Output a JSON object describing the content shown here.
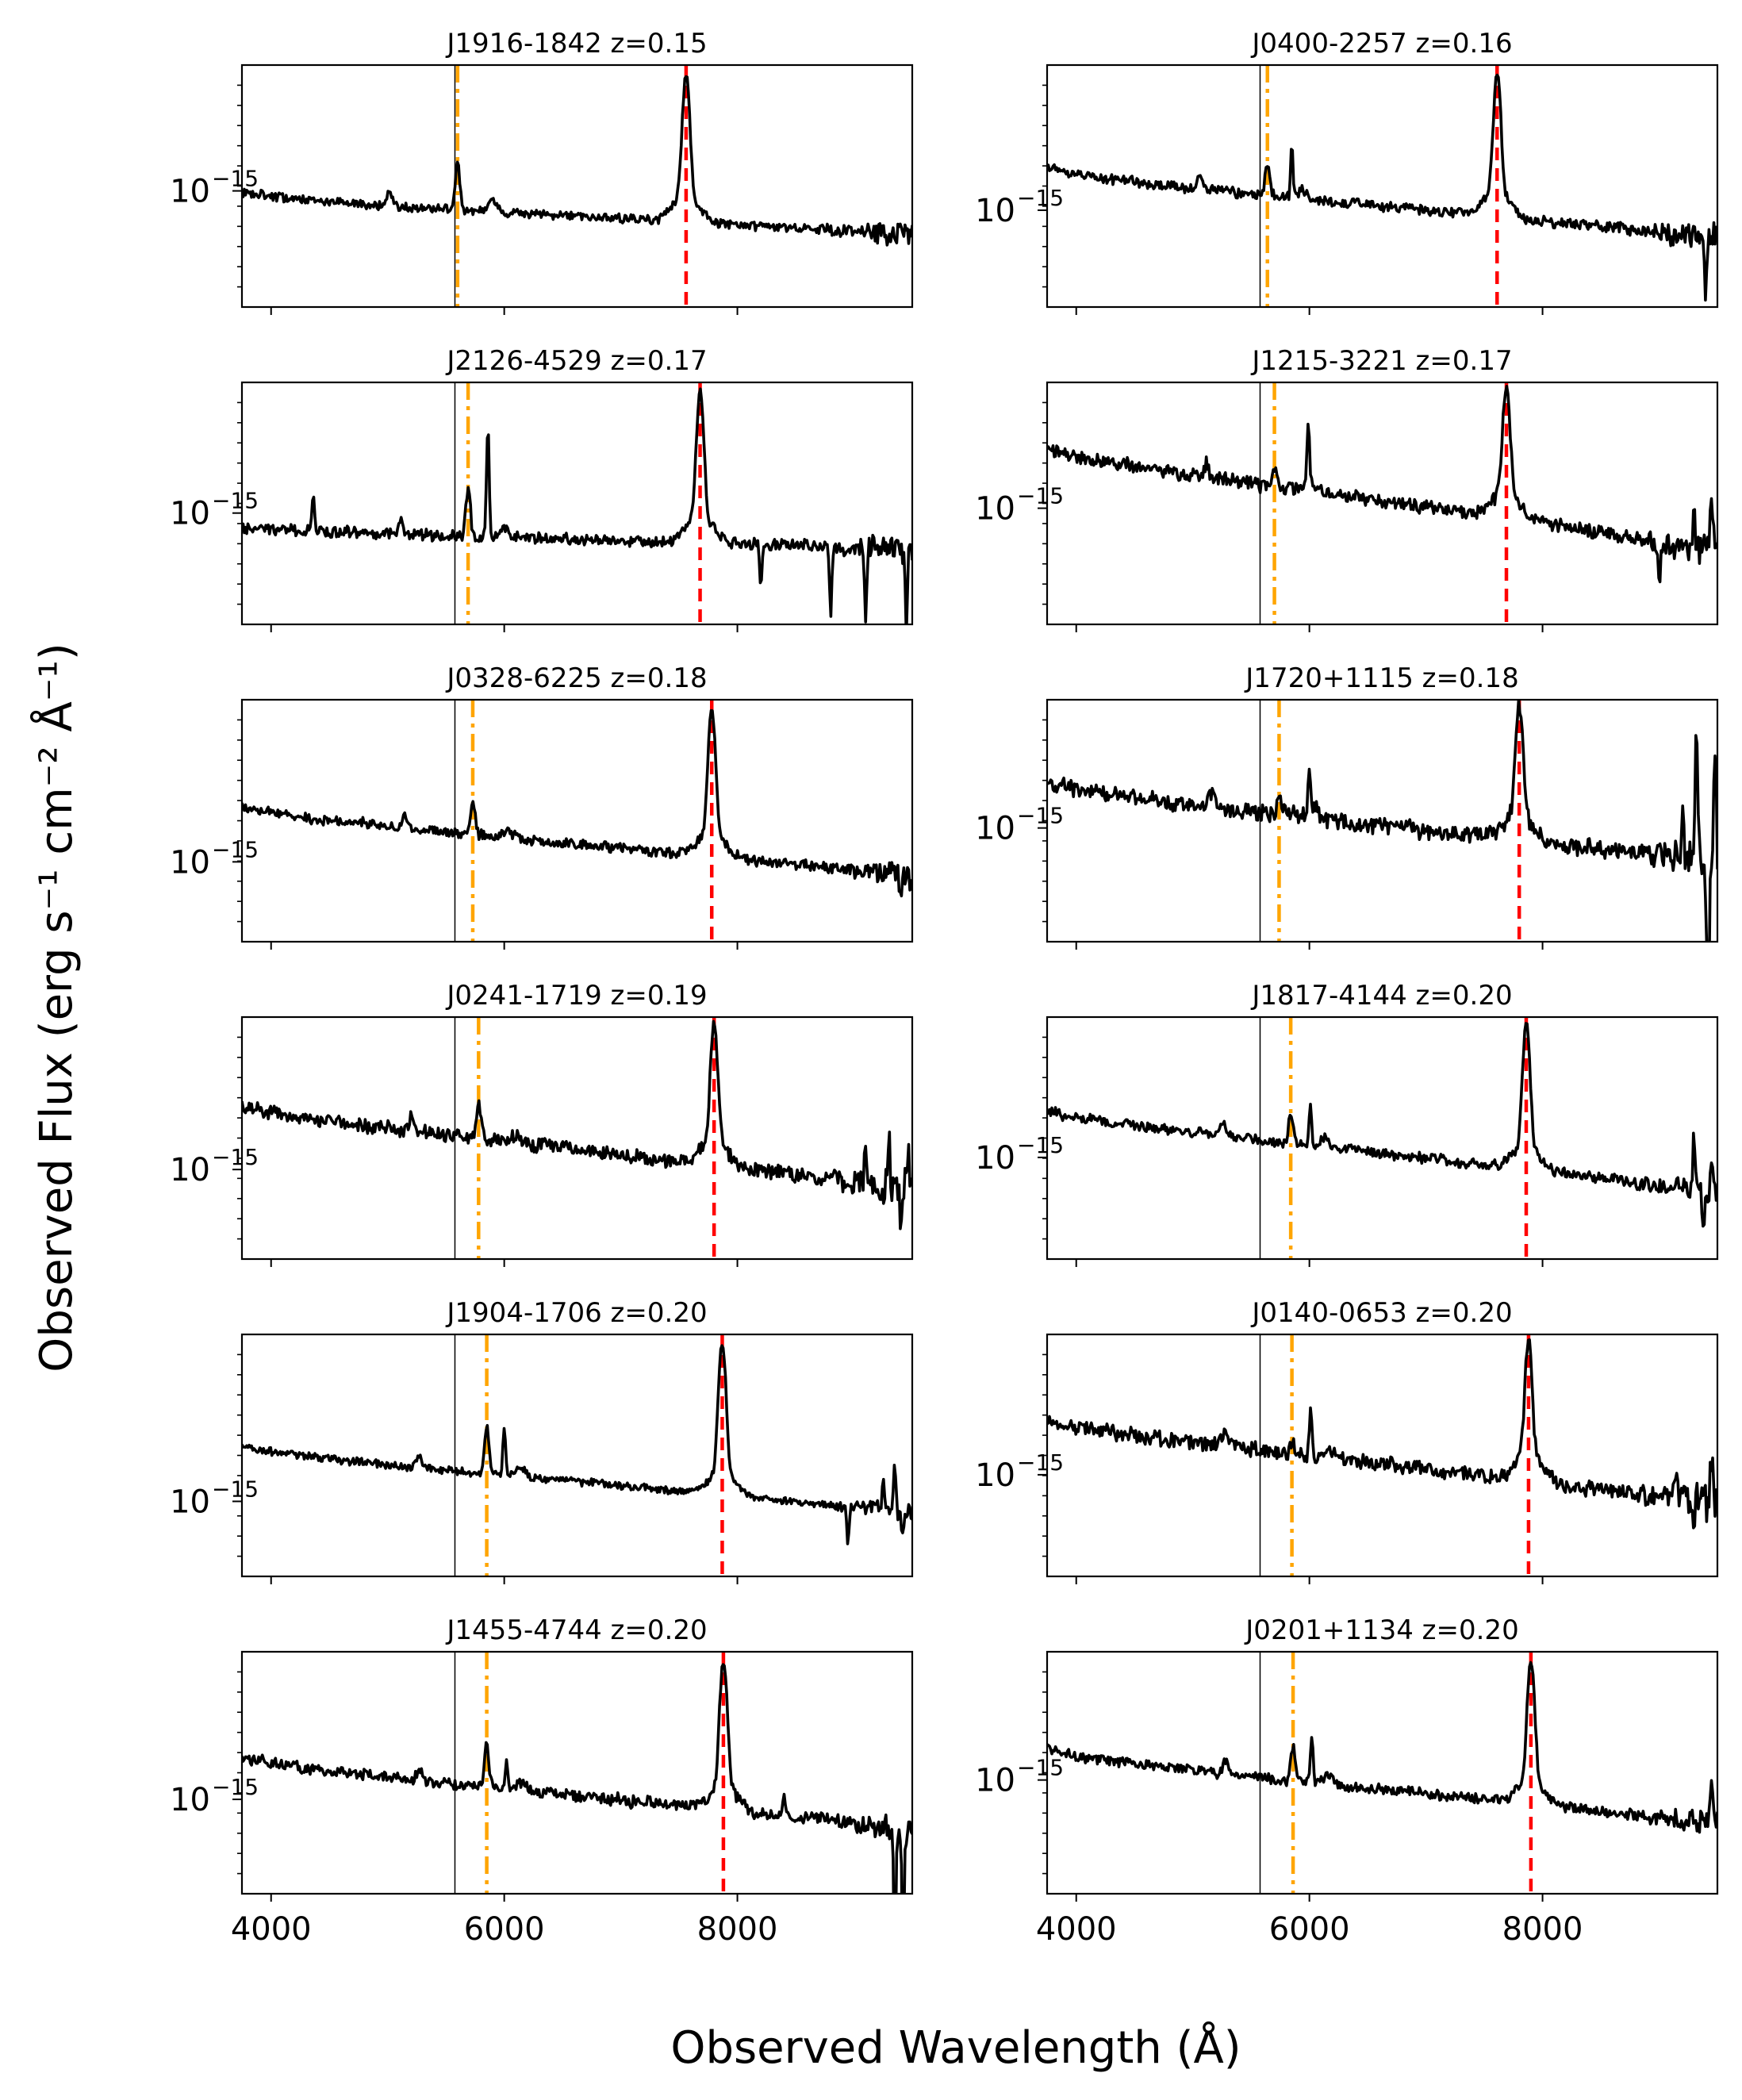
{
  "figure": {
    "xlabel": "Observed Wavelength (Å)",
    "ylabel": "Observed Flux (erg s⁻¹ cm⁻² Å⁻¹)",
    "ytick_base": "10",
    "ytick_exp": "−15",
    "xticks": [
      "4000",
      "6000",
      "8000"
    ]
  },
  "colors": {
    "spectrum": "#000000",
    "sky_line": "#000000",
    "hbeta_line": "#FFA500",
    "halpha_line": "#FF0000"
  },
  "chart_data": [
    {
      "type": "line",
      "title": "J1916-1842 z=0.15",
      "xlim": [
        3750,
        9500
      ],
      "sky_line": 5577,
      "hbeta": 5600,
      "halpha": 7560,
      "continuum": [
        1.05,
        0.75
      ],
      "ha_peak": 2.6,
      "hb_peak": 1.35,
      "y_tick_frac": 0.52,
      "noise": 0.04,
      "seed": 11,
      "spikes": []
    },
    {
      "type": "line",
      "title": "J0400-2257 z=0.16",
      "xlim": [
        3750,
        9500
      ],
      "sky_line": 5577,
      "hbeta": 5640,
      "halpha": 7610,
      "continuum": [
        1.3,
        0.72
      ],
      "ha_peak": 2.75,
      "hb_peak": 1.35,
      "y_tick_frac": 0.6,
      "noise": 0.05,
      "seed": 12,
      "spikes": [
        [
          5850,
          0.5
        ],
        [
          9400,
          -0.4
        ]
      ]
    },
    {
      "type": "line",
      "title": "J2126-4529 z=0.17",
      "xlim": [
        3750,
        9500
      ],
      "sky_line": 5577,
      "hbeta": 5690,
      "halpha": 7680,
      "continuum": [
        0.85,
        0.72
      ],
      "ha_peak": 2.3,
      "hb_peak": 1.15,
      "y_tick_frac": 0.54,
      "noise": 0.05,
      "seed": 13,
      "spikes": [
        [
          5860,
          1.4
        ],
        [
          4360,
          0.35
        ],
        [
          8200,
          -0.3
        ],
        [
          8800,
          -0.45
        ],
        [
          9100,
          -0.45
        ],
        [
          9450,
          -0.5
        ]
      ]
    },
    {
      "type": "line",
      "title": "J1215-3221 z=0.17",
      "xlim": [
        3750,
        9500
      ],
      "sky_line": 5577,
      "hbeta": 5700,
      "halpha": 7690,
      "continuum": [
        1.55,
        0.68
      ],
      "ha_peak": 2.3,
      "hb_peak": 1.35,
      "y_tick_frac": 0.52,
      "noise": 0.06,
      "seed": 14,
      "spikes": [
        [
          5990,
          0.6
        ],
        [
          9000,
          -0.3
        ],
        [
          9300,
          0.4
        ],
        [
          9450,
          0.5
        ]
      ]
    },
    {
      "type": "line",
      "title": "J0328-6225 z=0.18",
      "xlim": [
        3750,
        9500
      ],
      "sky_line": 5577,
      "hbeta": 5730,
      "halpha": 7780,
      "continuum": [
        1.35,
        0.72
      ],
      "ha_peak": 3.1,
      "hb_peak": 1.45,
      "y_tick_frac": 0.67,
      "noise": 0.05,
      "seed": 15,
      "spikes": [
        [
          9400,
          -0.2
        ]
      ]
    },
    {
      "type": "line",
      "title": "J1720+1115 z=0.18",
      "xlim": [
        3750,
        9500
      ],
      "sky_line": 5577,
      "hbeta": 5740,
      "halpha": 7800,
      "continuum": [
        1.55,
        0.85
      ],
      "ha_peak": 2.5,
      "hb_peak": 1.35,
      "y_tick_frac": 0.53,
      "noise": 0.07,
      "seed": 16,
      "spikes": [
        [
          6000,
          0.4
        ],
        [
          9200,
          0.4
        ],
        [
          9320,
          1.6
        ],
        [
          9420,
          -0.9
        ],
        [
          9480,
          1.2
        ]
      ]
    },
    {
      "type": "line",
      "title": "J0241-1719 z=0.19",
      "xlim": [
        3750,
        9500
      ],
      "sky_line": 5577,
      "hbeta": 5780,
      "halpha": 7800,
      "continuum": [
        1.45,
        0.7
      ],
      "ha_peak": 2.7,
      "hb_peak": 1.45,
      "y_tick_frac": 0.63,
      "noise": 0.07,
      "seed": 17,
      "spikes": [
        [
          9100,
          0.3
        ],
        [
          9300,
          0.6
        ],
        [
          9400,
          -0.3
        ],
        [
          9460,
          0.5
        ]
      ]
    },
    {
      "type": "line",
      "title": "J1817-4144 z=0.20",
      "xlim": [
        3750,
        9500
      ],
      "sky_line": 5577,
      "hbeta": 5840,
      "halpha": 7860,
      "continuum": [
        1.45,
        0.7
      ],
      "ha_peak": 2.9,
      "hb_peak": 1.4,
      "y_tick_frac": 0.58,
      "noise": 0.05,
      "seed": 18,
      "spikes": [
        [
          6010,
          0.45
        ],
        [
          9300,
          0.6
        ],
        [
          9380,
          -0.3
        ],
        [
          9450,
          0.4
        ]
      ]
    },
    {
      "type": "line",
      "title": "J1904-1706 z=0.20",
      "xlim": [
        3750,
        9500
      ],
      "sky_line": 5577,
      "hbeta": 5850,
      "halpha": 7870,
      "continuum": [
        1.3,
        0.7
      ],
      "ha_peak": 3.2,
      "hb_peak": 1.55,
      "y_tick_frac": 0.69,
      "noise": 0.04,
      "seed": 19,
      "spikes": [
        [
          6000,
          0.6
        ],
        [
          8950,
          -0.3
        ],
        [
          9250,
          0.4
        ],
        [
          9350,
          0.6
        ],
        [
          9420,
          -0.25
        ]
      ]
    },
    {
      "type": "line",
      "title": "J0140-0653 z=0.20",
      "xlim": [
        3750,
        9500
      ],
      "sky_line": 5577,
      "hbeta": 5850,
      "halpha": 7880,
      "continuum": [
        1.6,
        0.8
      ],
      "ha_peak": 2.8,
      "hb_peak": 1.35,
      "y_tick_frac": 0.58,
      "noise": 0.07,
      "seed": 20,
      "spikes": [
        [
          6010,
          0.5
        ],
        [
          9150,
          0.3
        ],
        [
          9300,
          -0.3
        ],
        [
          9450,
          0.5
        ]
      ]
    },
    {
      "type": "line",
      "title": "J1455-4744 z=0.20",
      "xlim": [
        3750,
        9500
      ],
      "sky_line": 5577,
      "hbeta": 5850,
      "halpha": 7880,
      "continuum": [
        1.35,
        0.7
      ],
      "ha_peak": 3.1,
      "hb_peak": 1.5,
      "y_tick_frac": 0.61,
      "noise": 0.06,
      "seed": 21,
      "spikes": [
        [
          6020,
          0.3
        ],
        [
          8400,
          0.3
        ],
        [
          9350,
          -0.8
        ],
        [
          9420,
          -0.8
        ]
      ]
    },
    {
      "type": "line",
      "title": "J0201+1134 z=0.20",
      "xlim": [
        3750,
        9500
      ],
      "sky_line": 5577,
      "hbeta": 5860,
      "halpha": 7900,
      "continuum": [
        1.4,
        0.75
      ],
      "ha_peak": 2.8,
      "hb_peak": 1.45,
      "y_tick_frac": 0.53,
      "noise": 0.05,
      "seed": 22,
      "spikes": [
        [
          6020,
          0.5
        ],
        [
          9450,
          0.3
        ]
      ]
    }
  ]
}
